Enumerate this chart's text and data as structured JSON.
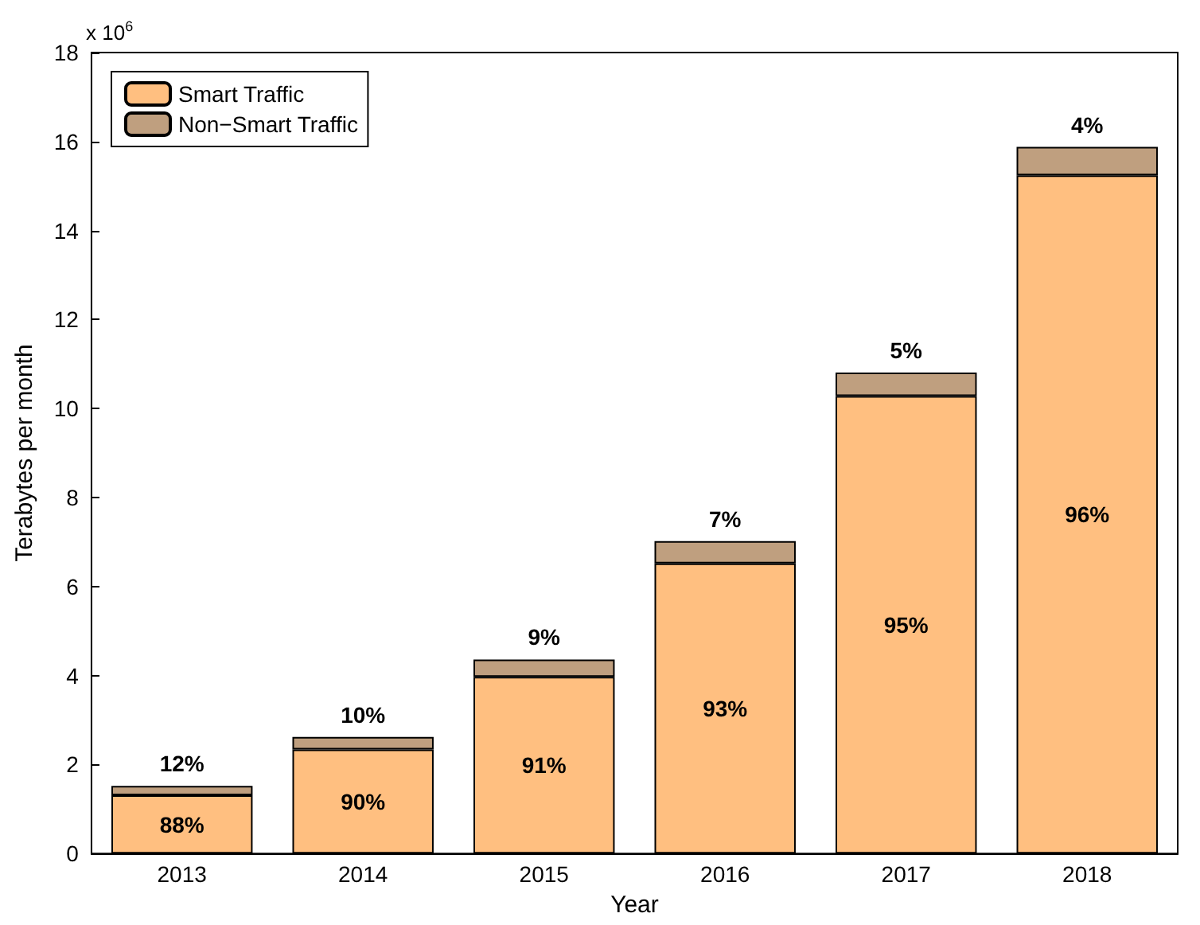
{
  "chart_data": {
    "type": "bar",
    "stacked": true,
    "xlabel": "Year",
    "ylabel": "Terabytes per month",
    "categories": [
      "2013",
      "2014",
      "2015",
      "2016",
      "2017",
      "2018"
    ],
    "series": [
      {
        "name": "Smart Traffic",
        "color": "#ffbf80",
        "values": [
          1.31,
          2.34,
          3.97,
          6.52,
          10.28,
          15.24
        ]
      },
      {
        "name": "Non−Smart Traffic",
        "color": "#bf9f7f",
        "values": [
          0.21,
          0.28,
          0.39,
          0.5,
          0.53,
          0.64
        ]
      }
    ],
    "ylim": [
      0,
      18
    ],
    "yticks": [
      0,
      2,
      4,
      6,
      8,
      10,
      12,
      14,
      16,
      18
    ],
    "annotations": [
      "x 10$^{6}$",
      "88%",
      "90%",
      "91%",
      "93%",
      "95%",
      "96%",
      {
        "text": "12%",
        "x": "2013",
        "y": 1.52
      },
      {
        "text": "10%",
        "x": "2014",
        "y": 2.62
      },
      {
        "text": "9%",
        "x": "2015",
        "y": 4.36
      },
      {
        "text": "7%",
        "x": "2016",
        "y": 7.02
      },
      {
        "text": "5%",
        "x": "2017",
        "y": 10.81
      },
      {
        "text": "4%",
        "x": "2018",
        "y": 15.88
      }
    ],
    "legend": "top left",
    "grid": false
  }
}
